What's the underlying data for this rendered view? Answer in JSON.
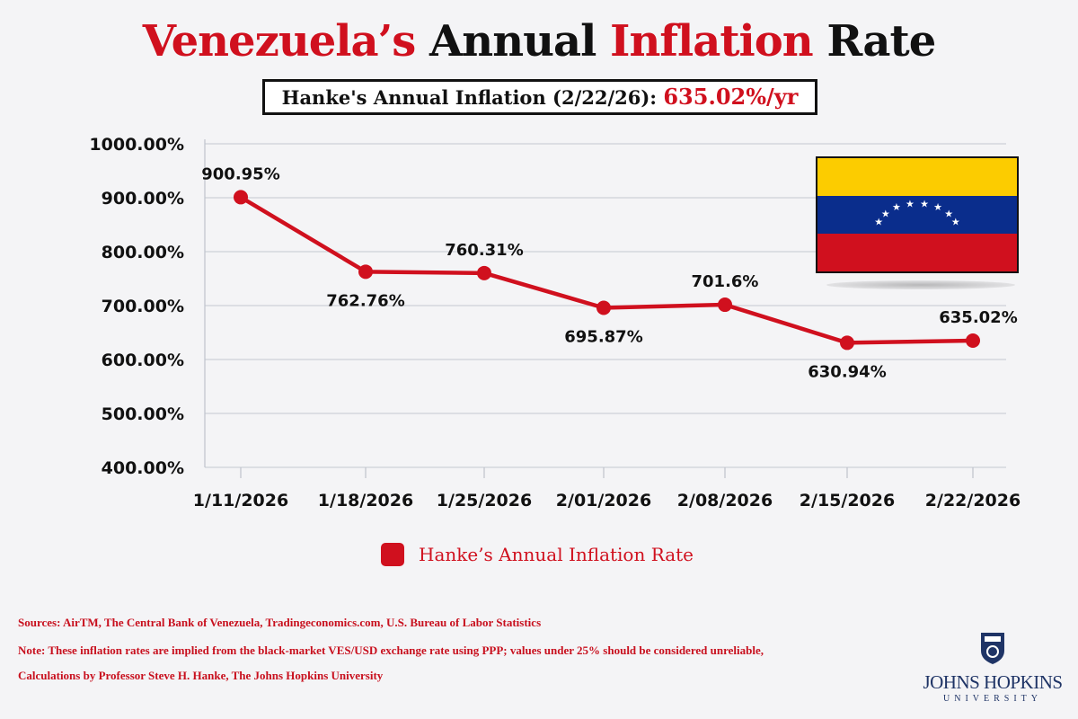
{
  "title": {
    "part1": "Venezuela’s",
    "part2": "Annual",
    "part3": "Inflation",
    "part4": "Rate"
  },
  "subtitle": {
    "label": "Hanke's Annual Inflation (2/22/26):",
    "value": "635.02%/yr"
  },
  "colors": {
    "accent": "#d0101e",
    "flag_yellow": "#fccc00",
    "flag_blue": "#0a2d8c",
    "flag_red": "#d0101e"
  },
  "chart_data": {
    "type": "line",
    "categories": [
      "1/11/2026",
      "1/18/2026",
      "1/25/2026",
      "2/01/2026",
      "2/08/2026",
      "2/15/2026",
      "2/22/2026"
    ],
    "series": [
      {
        "name": "Hanke’s Annual Inflation Rate",
        "values": [
          900.95,
          762.76,
          760.31,
          695.87,
          701.6,
          630.94,
          635.02
        ]
      }
    ],
    "data_labels": [
      "900.95%",
      "762.76%",
      "760.31%",
      "695.87%",
      "701.6%",
      "630.94%",
      "635.02%"
    ],
    "yticks": [
      "400.00%",
      "500.00%",
      "600.00%",
      "700.00%",
      "800.00%",
      "900.00%",
      "1000.00%"
    ],
    "ylim": [
      400,
      1000
    ],
    "grid": true,
    "legend": "bottom-center"
  },
  "footer": {
    "sources": "Sources: AirTM, The Central Bank of Venezuela, Tradingeconomics.com, U.S. Bureau of Labor Statistics",
    "note": "Note: These inflation rates are implied from the black-market VES/USD exchange rate using PPP; values under 25% should be considered unreliable,",
    "calc": "Calculations by Professor Steve H. Hanke, The Johns Hopkins University"
  },
  "logo": {
    "name": "JOHNS HOPKINS",
    "sub": "UNIVERSITY"
  }
}
